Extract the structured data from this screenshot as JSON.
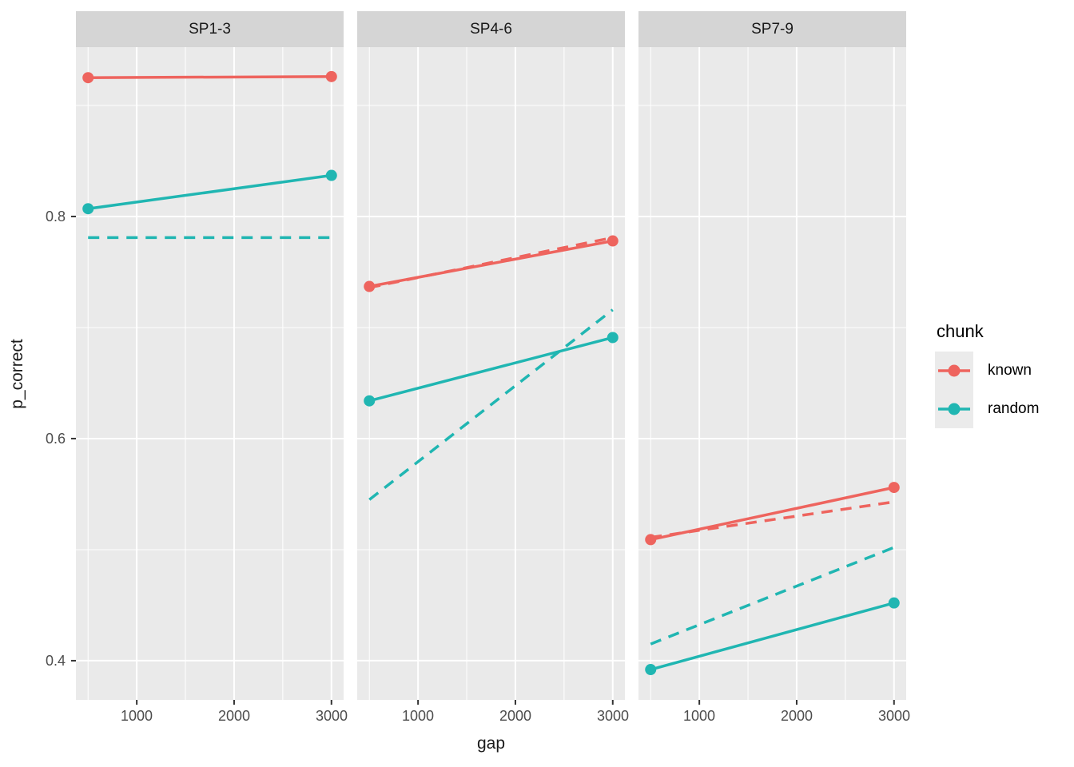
{
  "chart_data": {
    "type": "line",
    "title": "",
    "xlabel": "gap",
    "ylabel": "p_correct",
    "legend_position": "right",
    "grid": "on",
    "x_tick_labels": [
      "1000",
      "2000",
      "3000"
    ],
    "y_tick_labels": [
      "0.4",
      "0.6",
      "0.8"
    ],
    "x_ticks": [
      1000,
      2000,
      3000
    ],
    "x_minor_ticks": [
      500,
      1500,
      2500
    ],
    "y_ticks": [
      0.4,
      0.6,
      0.8
    ],
    "y_minor_ticks": [
      0.5,
      0.7,
      0.9
    ],
    "xlim": [
      375,
      3125
    ],
    "ylim": [
      0.3647,
      0.9525
    ],
    "x": [
      500,
      3000
    ],
    "facets": [
      {
        "label": "SP1-3",
        "series": [
          {
            "chunk": "known",
            "linetype": "solid",
            "points": true,
            "y": [
              0.925,
              0.926
            ]
          },
          {
            "chunk": "random",
            "linetype": "solid",
            "points": true,
            "y": [
              0.807,
              0.837
            ]
          },
          {
            "chunk": "random",
            "linetype": "dashed",
            "points": false,
            "y": [
              0.781,
              0.781
            ]
          }
        ]
      },
      {
        "label": "SP4-6",
        "series": [
          {
            "chunk": "known",
            "linetype": "solid",
            "points": true,
            "y": [
              0.737,
              0.778
            ]
          },
          {
            "chunk": "known",
            "linetype": "dashed",
            "points": false,
            "y": [
              0.736,
              0.781
            ]
          },
          {
            "chunk": "random",
            "linetype": "solid",
            "points": true,
            "y": [
              0.634,
              0.691
            ]
          },
          {
            "chunk": "random",
            "linetype": "dashed",
            "points": false,
            "y": [
              0.545,
              0.716
            ]
          }
        ]
      },
      {
        "label": "SP7-9",
        "series": [
          {
            "chunk": "known",
            "linetype": "solid",
            "points": true,
            "y": [
              0.509,
              0.556
            ]
          },
          {
            "chunk": "known",
            "linetype": "dashed",
            "points": false,
            "y": [
              0.511,
              0.543
            ]
          },
          {
            "chunk": "random",
            "linetype": "solid",
            "points": true,
            "y": [
              0.392,
              0.452
            ]
          },
          {
            "chunk": "random",
            "linetype": "dashed",
            "points": false,
            "y": [
              0.415,
              0.502
            ]
          }
        ]
      }
    ],
    "legend": {
      "title": "chunk",
      "entries": [
        {
          "label": "known",
          "color": "#EE645E"
        },
        {
          "label": "random",
          "color": "#20B6B2"
        }
      ]
    },
    "colors": {
      "known": "#EE645E",
      "random": "#20B6B2",
      "panel_bg": "#EAEAEA",
      "strip_bg": "#D5D5D5",
      "grid": "#FFFFFF",
      "axis_text": "#4D4D4D",
      "title_text": "#1A1A1A",
      "tick_mark": "#333333"
    }
  }
}
